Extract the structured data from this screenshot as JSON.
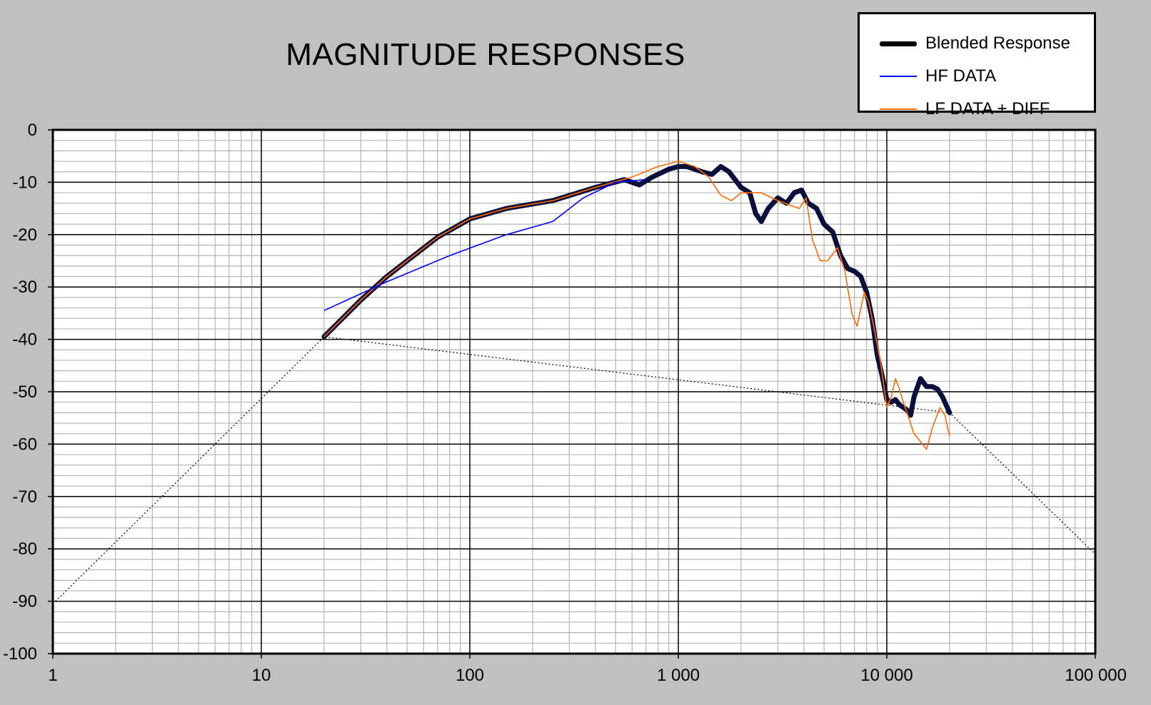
{
  "chart_data": {
    "type": "line",
    "title": "MAGNITUDE RESPONSES",
    "xscale": "log",
    "xlim": [
      1,
      100000
    ],
    "ylim": [
      -100,
      0
    ],
    "xticks": [
      1,
      10,
      100,
      1000,
      10000,
      100000
    ],
    "xtick_labels": [
      "1",
      "10",
      "100",
      "1 000",
      "10 000",
      "100 000"
    ],
    "yticks": [
      0,
      -10,
      -20,
      -30,
      -40,
      -50,
      -60,
      -70,
      -80,
      -90,
      -100
    ],
    "ytick_labels": [
      "0",
      "-10",
      "-20",
      "-30",
      "-40",
      "-50",
      "-60",
      "-70",
      "-80",
      "-90",
      "-100"
    ],
    "grid": true,
    "legend_position": "top-right",
    "series": [
      {
        "name": "LF DATA + DIFF",
        "color": "#ff6a00",
        "x": [
          20,
          30,
          40,
          50,
          70,
          100,
          150,
          250,
          400,
          600,
          800,
          1000,
          1200,
          1400,
          1600,
          1800,
          2000,
          2200,
          2500,
          3000,
          3500,
          3800,
          4100,
          4400,
          4800,
          5200,
          5800,
          6300,
          6800,
          7200,
          7800,
          8200,
          8700,
          9300,
          10000,
          10500,
          11000,
          11500,
          12000,
          12500,
          13500,
          14500,
          15500,
          16500,
          18000,
          19000,
          20000
        ],
        "y": [
          -39.5,
          -32.5,
          -28,
          -25,
          -20.5,
          -17,
          -15,
          -13.5,
          -11,
          -9,
          -7,
          -6,
          -7,
          -9,
          -12.5,
          -13.5,
          -12,
          -12,
          -12,
          -13.5,
          -14.5,
          -15,
          -13,
          -21,
          -25,
          -25,
          -22.5,
          -27,
          -35,
          -37.5,
          -31,
          -33,
          -38,
          -44,
          -53,
          -51,
          -47.5,
          -49.5,
          -52,
          -54,
          -58,
          -59.5,
          -61,
          -57,
          -53,
          -54.5,
          -58.5
        ]
      },
      {
        "name": "HF DATA",
        "color": "#0000ff",
        "x": [
          20,
          40,
          80,
          150,
          250,
          350,
          500,
          700
        ],
        "y": [
          -34.5,
          -29,
          -24,
          -20,
          -17.5,
          -13,
          -10,
          -9.5
        ]
      },
      {
        "name": "Blended Response",
        "color": "#0a0f3c",
        "x": [
          20,
          30,
          40,
          50,
          70,
          100,
          150,
          250,
          400,
          550,
          650,
          750,
          900,
          1000,
          1100,
          1300,
          1450,
          1600,
          1750,
          2000,
          2200,
          2350,
          2500,
          2700,
          3000,
          3300,
          3600,
          3900,
          4200,
          4600,
          5000,
          5500,
          6000,
          6500,
          7000,
          7500,
          8000,
          8500,
          9000,
          9500,
          10000,
          10500,
          11000,
          11500,
          12000,
          12500,
          13000,
          13500,
          14500,
          15500,
          16500,
          17500,
          18500,
          20000
        ],
        "y": [
          -39.5,
          -32.5,
          -28,
          -25,
          -20.5,
          -17,
          -15,
          -13.5,
          -11,
          -9.5,
          -10.5,
          -9,
          -7.5,
          -7,
          -7,
          -8,
          -8.5,
          -7,
          -8,
          -11,
          -12,
          -16,
          -17.5,
          -15,
          -13,
          -14,
          -12,
          -11.5,
          -14,
          -15,
          -18,
          -19.5,
          -24,
          -26.5,
          -27,
          -28,
          -31,
          -36,
          -43,
          -47,
          -51.5,
          -52,
          -51.5,
          -52.5,
          -53,
          -53.5,
          -54.5,
          -51,
          -47.5,
          -49,
          -49,
          -49.5,
          -51,
          -54
        ]
      },
      {
        "name": "",
        "color": "#000000",
        "style": "dotted",
        "x": [
          1,
          20,
          20000,
          100000
        ],
        "y": [
          -90.5,
          -39.5,
          -54,
          -81
        ]
      }
    ]
  },
  "legend": {
    "items": [
      {
        "label": "Blended Response",
        "color": "#0a0f3c"
      },
      {
        "label": "HF DATA",
        "color": "#0000ff"
      },
      {
        "label": "LF DATA + DIFF",
        "color": "#ff6a00"
      }
    ]
  }
}
